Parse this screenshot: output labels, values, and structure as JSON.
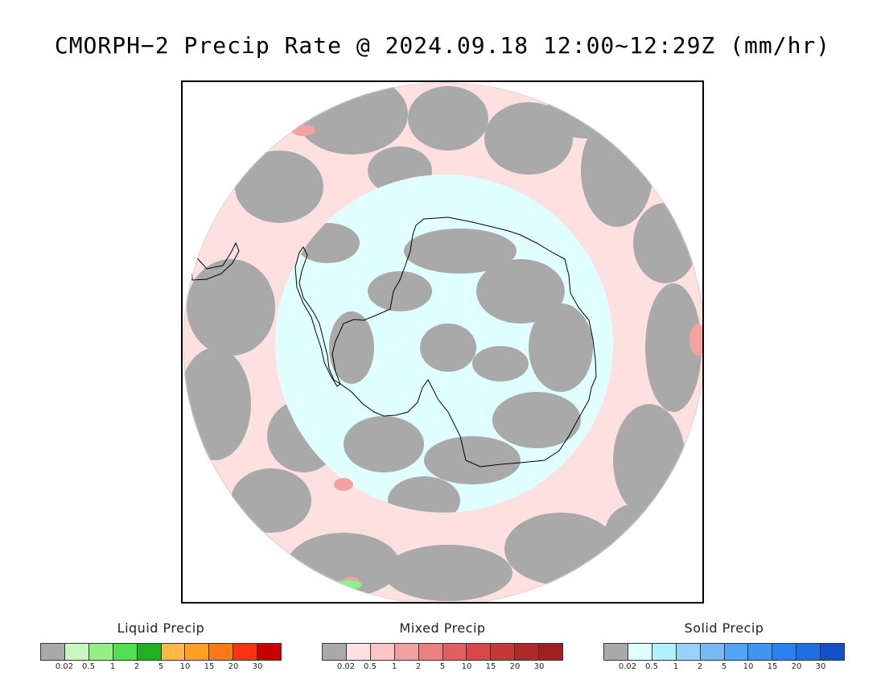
{
  "title": "CMORPH−2 Precip Rate @ 2024.09.18 12:00~12:29Z (mm/hr)",
  "map": {
    "projection": "south-polar-stereographic",
    "colors": {
      "no_precip": "#a9a9a9",
      "light_mixed": "#ffe0e0",
      "light_solid": "#e0ffff",
      "mixed_moderate": "#f3a1a1",
      "liquid_light": "#8ef08e",
      "coastline": "#000000",
      "background": "#ffffff"
    }
  },
  "legends": [
    {
      "title": "Liquid Precip",
      "colors": [
        "#a9a9a9",
        "#c8f8c0",
        "#96ee86",
        "#50e050",
        "#22b022",
        "#ffb845",
        "#ffa020",
        "#ff7818",
        "#ff3210",
        "#c80000"
      ],
      "ticks": [
        "0.02",
        "0.5",
        "1",
        "2",
        "5",
        "10",
        "15",
        "20",
        "30"
      ]
    },
    {
      "title": "Mixed Precip",
      "colors": [
        "#a9a9a9",
        "#ffe0e0",
        "#ffc4c8",
        "#f0a0a0",
        "#e88080",
        "#e06060",
        "#d84848",
        "#c83838",
        "#b02828",
        "#a02020"
      ],
      "ticks": [
        "0.02",
        "0.5",
        "1",
        "2",
        "5",
        "10",
        "15",
        "20",
        "30"
      ]
    },
    {
      "title": "Solid Precip",
      "colors": [
        "#a9a9a9",
        "#e0ffff",
        "#b0f0ff",
        "#96d2fa",
        "#78b9f5",
        "#50a5f5",
        "#3c96f0",
        "#2882f0",
        "#1e6ee6",
        "#1450c8"
      ],
      "ticks": [
        "0.02",
        "0.5",
        "1",
        "2",
        "5",
        "10",
        "15",
        "20",
        "30"
      ]
    }
  ]
}
